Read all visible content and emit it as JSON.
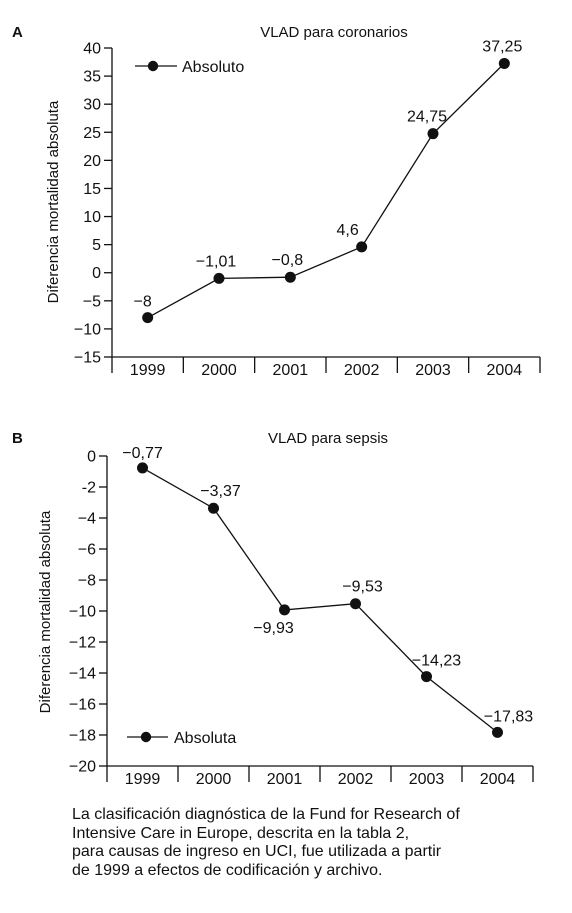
{
  "chart_data": [
    {
      "panel": "A",
      "type": "line",
      "title": "VLAD para coronarios",
      "xlabel": "",
      "ylabel": "Diferencia mortalidad absoluta",
      "categories": [
        "1999",
        "2000",
        "2001",
        "2002",
        "2003",
        "2004"
      ],
      "series": [
        {
          "name": "Absoluto",
          "values": [
            -8,
            -1.01,
            -0.8,
            4.6,
            24.75,
            37.25
          ]
        }
      ],
      "data_labels": [
        "−8",
        "−1,01",
        "−0,8",
        "4,6",
        "24,75",
        "37,25"
      ],
      "ylim": [
        -15,
        40
      ],
      "yticks": [
        40,
        35,
        30,
        25,
        20,
        15,
        10,
        5,
        0,
        -5,
        -10,
        -15
      ],
      "ytick_labels": [
        "40",
        "35",
        "30",
        "25",
        "20",
        "15",
        "10",
        "5",
        "0",
        "−5",
        "−10",
        "−15"
      ],
      "legend": "top-left",
      "grid": false,
      "marker": "filled-circle",
      "color": "#111111"
    },
    {
      "panel": "B",
      "type": "line",
      "title": "VLAD para sepsis",
      "xlabel": "",
      "ylabel": "Diferencia mortalidad absoluta",
      "categories": [
        "1999",
        "2000",
        "2001",
        "2002",
        "2003",
        "2004"
      ],
      "series": [
        {
          "name": "Absoluta",
          "values": [
            -0.77,
            -3.37,
            -9.93,
            -9.53,
            -14.23,
            -17.83
          ]
        }
      ],
      "data_labels": [
        "−0,77",
        "−3,37",
        "−9,93",
        "−9,53",
        "−14,23",
        "−17,83"
      ],
      "ylim": [
        -20,
        0
      ],
      "yticks": [
        0,
        -2,
        -4,
        -6,
        -8,
        -10,
        -12,
        -14,
        -16,
        -18,
        -20
      ],
      "ytick_labels": [
        "0",
        "-2",
        "−4",
        "−6",
        "−8",
        "−10",
        "−12",
        "−14",
        "−16",
        "−18",
        "−20"
      ],
      "legend": "bottom-left",
      "grid": false,
      "marker": "filled-circle",
      "color": "#111111"
    }
  ],
  "caption": [
    "La clasificación diagnóstica de la Fund for Research of",
    "Intensive Care in Europe, descrita en la tabla 2,",
    "para causas de ingreso en UCI, fue utilizada a partir",
    "de 1999 a efectos de codificación y archivo."
  ]
}
